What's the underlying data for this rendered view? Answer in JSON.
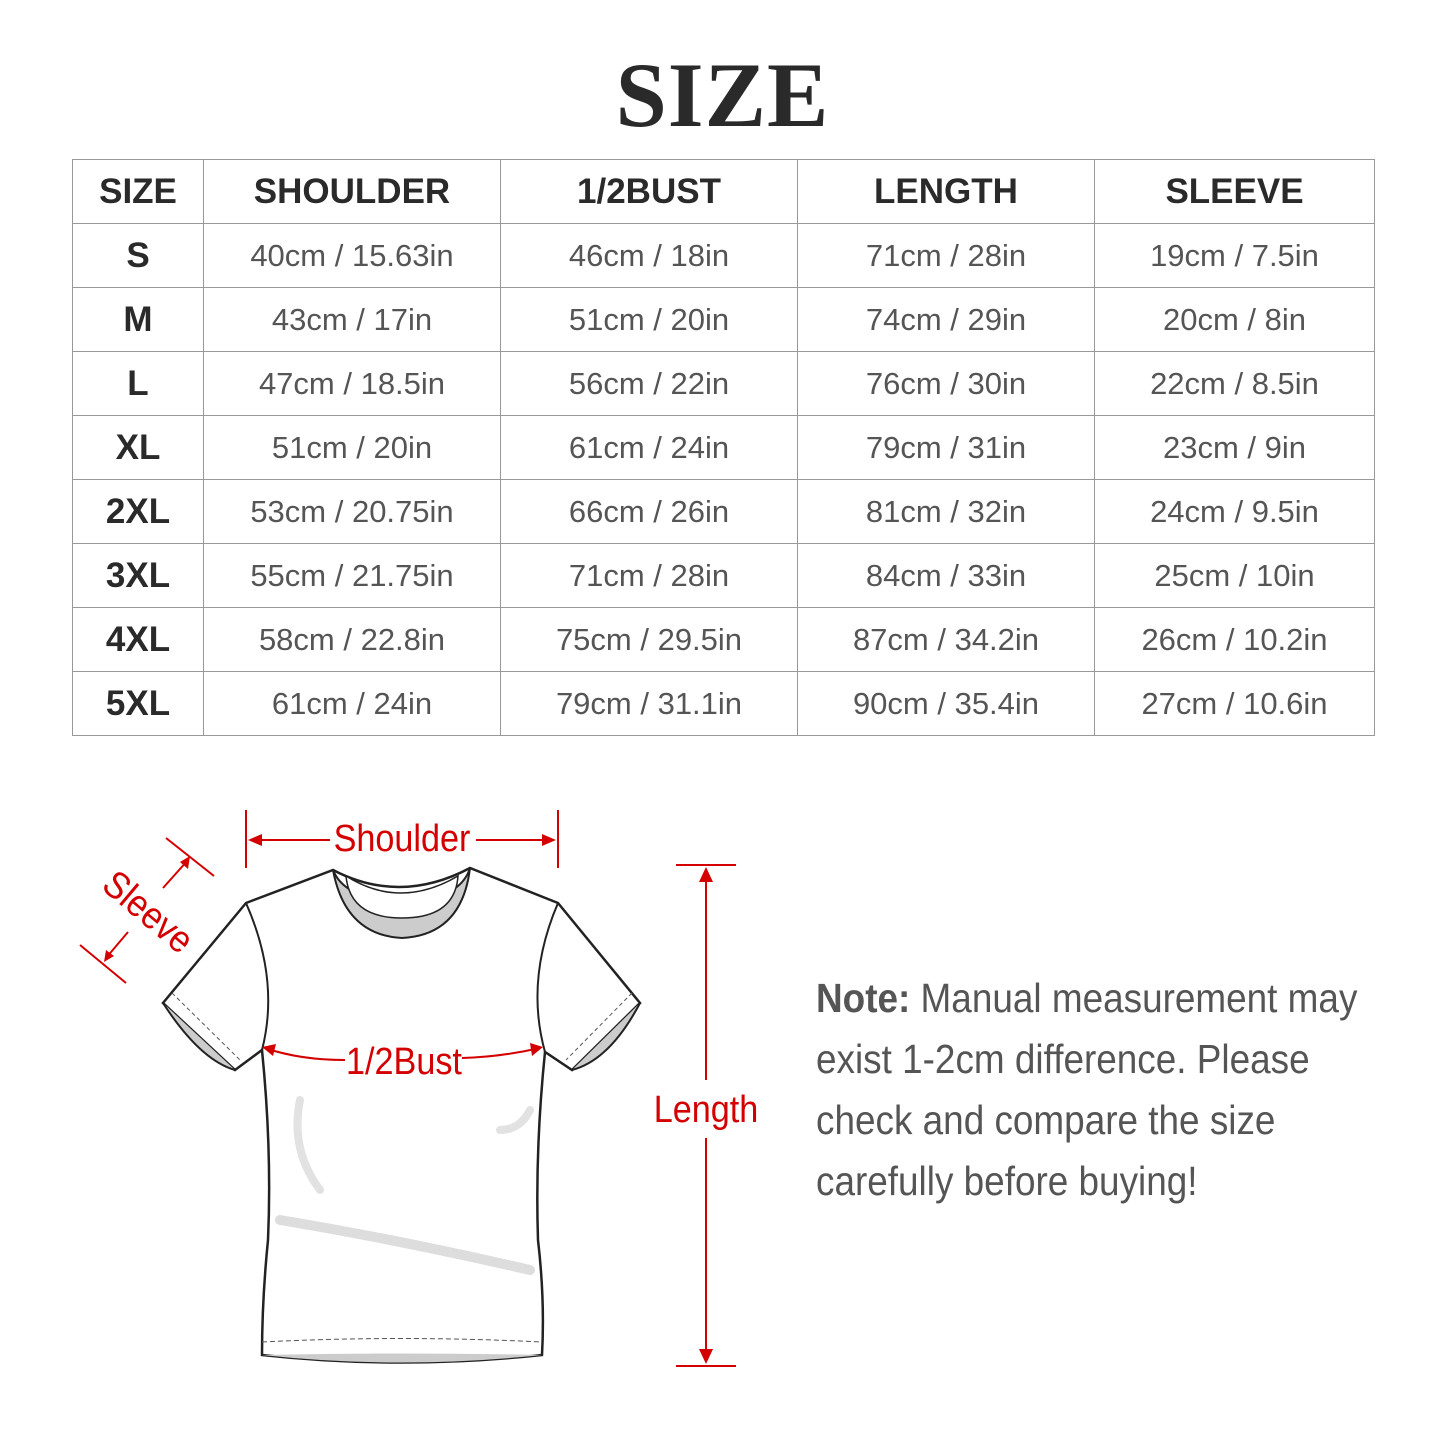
{
  "title": "SIZE",
  "table": {
    "headers": [
      "SIZE",
      "SHOULDER",
      "1/2BUST",
      "LENGTH",
      "SLEEVE"
    ],
    "rows": [
      [
        "S",
        "40cm / 15.63in",
        "46cm / 18in",
        "71cm / 28in",
        "19cm / 7.5in"
      ],
      [
        "M",
        "43cm / 17in",
        "51cm / 20in",
        "74cm / 29in",
        "20cm / 8in"
      ],
      [
        "L",
        "47cm / 18.5in",
        "56cm / 22in",
        "76cm / 30in",
        "22cm / 8.5in"
      ],
      [
        "XL",
        "51cm / 20in",
        "61cm / 24in",
        "79cm / 31in",
        "23cm / 9in"
      ],
      [
        "2XL",
        "53cm / 20.75in",
        "66cm / 26in",
        "81cm / 32in",
        "24cm / 9.5in"
      ],
      [
        "3XL",
        "55cm / 21.75in",
        "71cm / 28in",
        "84cm / 33in",
        "25cm / 10in"
      ],
      [
        "4XL",
        "58cm / 22.8in",
        "75cm / 29.5in",
        "87cm / 34.2in",
        "26cm / 10.2in"
      ],
      [
        "5XL",
        "61cm / 24in",
        "79cm / 31.1in",
        "90cm / 35.4in",
        "27cm / 10.6in"
      ]
    ]
  },
  "diagram": {
    "shoulder": "Shoulder",
    "sleeve": "Sleeve",
    "bust": "1/2Bust",
    "length": "Length",
    "accent_color": "#d40000"
  },
  "note": {
    "label": "Note:",
    "text": "Manual measurement may exist 1-2cm difference. Please check and compare the size carefully before buying!"
  }
}
